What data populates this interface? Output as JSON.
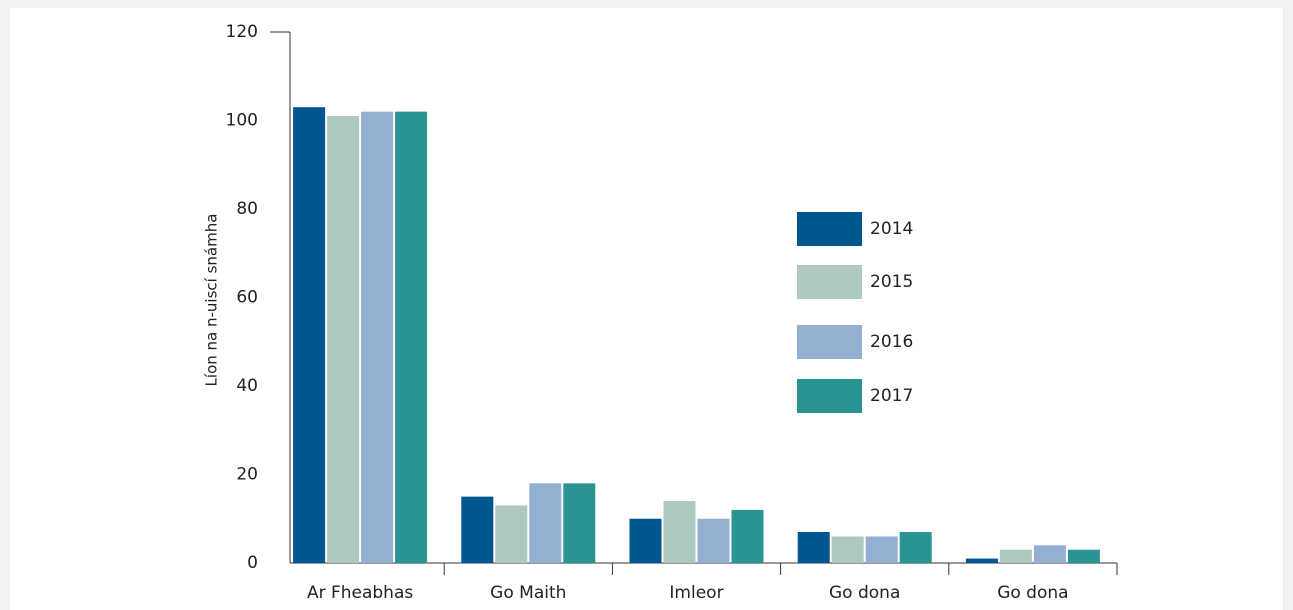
{
  "chart_data": {
    "type": "bar",
    "y_label": "Líon na n-uiscí snámha",
    "categories": [
      "Ar Fheabhas",
      "Go Maith",
      "Imleor",
      "Go dona",
      "Go dona"
    ],
    "series": [
      {
        "name": "2014",
        "color": "#00568f",
        "values": [
          103,
          15,
          10,
          7,
          1
        ]
      },
      {
        "name": "2015",
        "color": "#adc9bf",
        "values": [
          101,
          13,
          14,
          6,
          3
        ]
      },
      {
        "name": "2016",
        "color": "#93afd2",
        "values": [
          102,
          18,
          10,
          6,
          4
        ]
      },
      {
        "name": "2017",
        "color": "#2a9393",
        "values": [
          102,
          18,
          12,
          7,
          3
        ]
      }
    ],
    "ylim": [
      0,
      120
    ],
    "yticks": [
      0,
      20,
      40,
      60,
      80,
      100,
      120
    ],
    "grid": false
  }
}
